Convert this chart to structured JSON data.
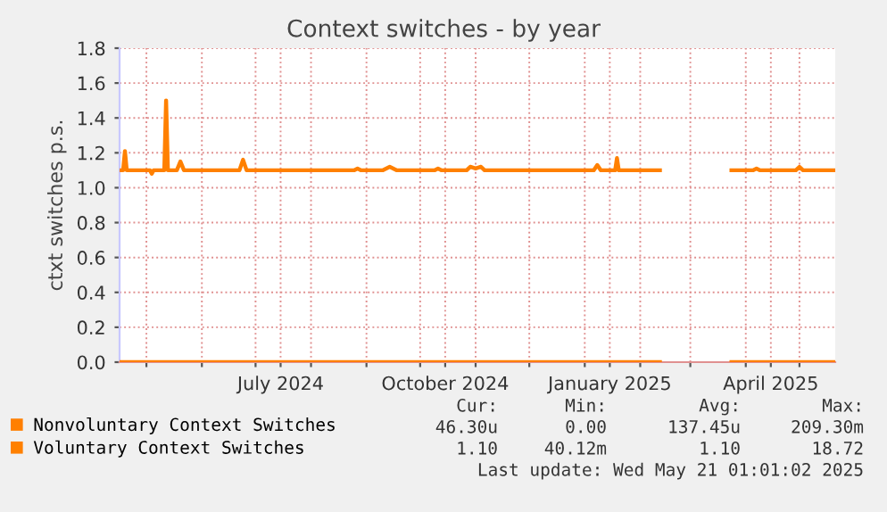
{
  "chart_data": {
    "type": "line",
    "title": "Context switches - by year",
    "ylabel": "ctxt switches p.s.",
    "xlim": [
      "2024-04-16",
      "2025-05-21"
    ],
    "xticks": [
      {
        "value": "2024-05-01",
        "label": null
      },
      {
        "value": "2024-06-01",
        "label": null
      },
      {
        "value": "2024-07-01",
        "label": null
      },
      {
        "value": "2024-07-15",
        "label": "July 2024"
      },
      {
        "value": "2024-08-01",
        "label": null
      },
      {
        "value": "2024-09-01",
        "label": null
      },
      {
        "value": "2024-10-01",
        "label": null
      },
      {
        "value": "2024-10-15",
        "label": "October 2024"
      },
      {
        "value": "2024-11-01",
        "label": null
      },
      {
        "value": "2024-12-01",
        "label": null
      },
      {
        "value": "2025-01-01",
        "label": null
      },
      {
        "value": "2025-01-15",
        "label": "January 2025"
      },
      {
        "value": "2025-02-01",
        "label": null
      },
      {
        "value": "2025-03-01",
        "label": null
      },
      {
        "value": "2025-04-01",
        "label": null
      },
      {
        "value": "2025-04-15",
        "label": "April 2025"
      },
      {
        "value": "2025-05-01",
        "label": null
      }
    ],
    "ylim": [
      0.0,
      1.8
    ],
    "yticks": [
      {
        "value": 0,
        "label": "0.0"
      },
      0.2,
      0.4,
      0.6,
      0.8,
      {
        "value": 1,
        "label": "1.0"
      },
      1.2,
      1.4,
      1.6,
      1.8
    ],
    "grid": true,
    "legend": "bottom",
    "line_style": "solid",
    "marker": "none",
    "series": [
      {
        "name": "Nonvoluntary Context Switches",
        "color": "#ff7f00",
        "x": [
          "2024-04-16",
          "2024-10-01",
          "2025-02-12",
          "2025-02-13",
          "2025-03-24",
          "2025-05-21"
        ],
        "values": [
          0,
          0,
          0,
          null,
          0,
          0
        ]
      },
      {
        "name": "Voluntary Context Switches",
        "color": "#ff8000",
        "x": [
          "2024-04-16",
          "2024-04-18",
          "2024-04-19",
          "2024-04-20",
          "2024-05-03",
          "2024-05-04",
          "2024-05-05",
          "2024-05-11",
          "2024-05-12",
          "2024-05-13",
          "2024-05-18",
          "2024-05-20",
          "2024-05-22",
          "2024-06-22",
          "2024-06-24",
          "2024-06-26",
          "2024-08-25",
          "2024-08-27",
          "2024-08-29",
          "2024-09-10",
          "2024-09-14",
          "2024-09-18",
          "2024-10-09",
          "2024-10-11",
          "2024-10-13",
          "2024-10-27",
          "2024-10-29",
          "2024-11-01",
          "2024-11-04",
          "2024-11-06",
          "2025-01-06",
          "2025-01-08",
          "2025-01-10",
          "2025-01-18",
          "2025-01-19",
          "2025-01-20",
          "2025-02-12",
          "2025-02-13",
          "2025-03-24",
          "2025-04-05",
          "2025-04-07",
          "2025-04-09",
          "2025-04-29",
          "2025-05-01",
          "2025-05-03",
          "2025-05-21"
        ],
        "values": [
          1.1,
          1.1,
          1.21,
          1.1,
          1.1,
          1.08,
          1.1,
          1.1,
          1.5,
          1.1,
          1.1,
          1.15,
          1.1,
          1.1,
          1.16,
          1.1,
          1.1,
          1.11,
          1.1,
          1.1,
          1.12,
          1.1,
          1.1,
          1.11,
          1.1,
          1.1,
          1.12,
          1.11,
          1.12,
          1.1,
          1.1,
          1.13,
          1.1,
          1.1,
          1.17,
          1.1,
          1.1,
          null,
          1.1,
          1.1,
          1.11,
          1.1,
          1.1,
          1.12,
          1.1,
          1.1
        ]
      }
    ],
    "annotations": [
      "Cur:",
      "Min:",
      "Avg:",
      "Max:",
      "46.30u",
      "0.00",
      "137.45u",
      "209.30m",
      "1.10",
      "40.12m",
      "1.10",
      "18.72",
      "Last update: Wed May 21 01:01:02 2025"
    ]
  }
}
